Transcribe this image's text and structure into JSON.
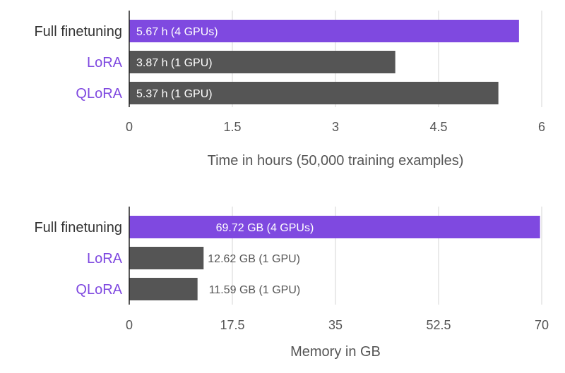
{
  "colors": {
    "accent": "#7f49e0",
    "bar_dark": "#555555",
    "grid": "#d5d5d5",
    "label_dark": "#333333",
    "label_purple": "#7f49e0"
  },
  "chart_data": [
    {
      "type": "bar",
      "orientation": "horizontal",
      "categories": [
        "Full finetuning",
        "LoRA",
        "QLoRA"
      ],
      "values": [
        5.67,
        3.87,
        5.37
      ],
      "data_labels": [
        "5.67 h (4 GPUs)",
        "3.87 h (1 GPU)",
        "5.37 h (1 GPU)"
      ],
      "xlabel": "Time in hours (50,000 training examples)",
      "xlim": [
        0,
        6
      ],
      "xticks": [
        "0",
        "1.5",
        "3",
        "4.5",
        "6"
      ],
      "grid": true
    },
    {
      "type": "bar",
      "orientation": "horizontal",
      "categories": [
        "Full finetuning",
        "LoRA",
        "QLoRA"
      ],
      "values": [
        69.72,
        12.62,
        11.59
      ],
      "data_labels": [
        "69.72 GB (4 GPUs)",
        "12.62 GB (1 GPU)",
        "11.59 GB (1 GPU)"
      ],
      "xlabel": "Memory in GB",
      "xlim": [
        0,
        70
      ],
      "xticks": [
        "0",
        "17.5",
        "35",
        "52.5",
        "70"
      ],
      "grid": true
    }
  ]
}
